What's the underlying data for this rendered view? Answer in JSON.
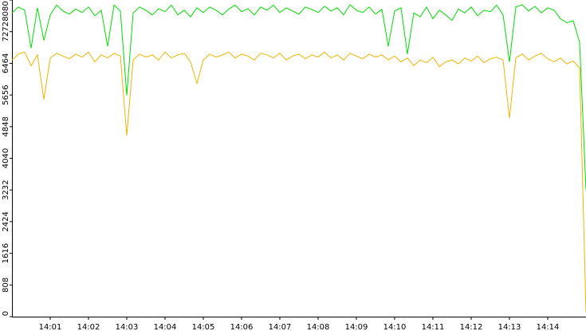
{
  "chart_data": {
    "type": "line",
    "categories": [
      null,
      null,
      null,
      null,
      null,
      null,
      "14:01",
      null,
      null,
      null,
      null,
      null,
      "14:02",
      null,
      null,
      null,
      null,
      null,
      "14:03",
      null,
      null,
      null,
      null,
      null,
      "14:04",
      null,
      null,
      null,
      null,
      null,
      "14:05",
      null,
      null,
      null,
      null,
      null,
      "14:06",
      null,
      null,
      null,
      null,
      null,
      "14:07",
      null,
      null,
      null,
      null,
      null,
      "14:08",
      null,
      null,
      null,
      null,
      null,
      "14:09",
      null,
      null,
      null,
      null,
      null,
      "14:10",
      null,
      null,
      null,
      null,
      null,
      "14:11",
      null,
      null,
      null,
      null,
      null,
      "14:12",
      null,
      null,
      null,
      null,
      null,
      "14:13",
      null,
      null,
      null,
      null,
      null,
      "14:14",
      null,
      null,
      null,
      null,
      null,
      null
    ],
    "series": [
      {
        "color": "#00dd00",
        "values": [
          7750,
          7900,
          7820,
          6850,
          7880,
          7050,
          7700,
          7950,
          7800,
          7720,
          7850,
          7760,
          7900,
          7680,
          7820,
          6900,
          7950,
          7800,
          5650,
          7750,
          7900,
          7820,
          7700,
          7860,
          7780,
          7950,
          7700,
          7820,
          7650,
          7880,
          7760,
          7900,
          7820,
          7700,
          7850,
          7950,
          7780,
          7860,
          7700,
          7900,
          7820,
          7950,
          7760,
          7880,
          7800,
          7720,
          7900,
          7840,
          7760,
          7920,
          7800,
          7880,
          7700,
          7960,
          7820,
          7760,
          7900,
          7720,
          7840,
          6900,
          7800,
          7880,
          6700,
          7750,
          7650,
          7900,
          7600,
          7820,
          7700,
          7560,
          7850,
          7750,
          7900,
          7680,
          7820,
          7780,
          7950,
          7700,
          6500,
          7900,
          7960,
          7800,
          7920,
          7750,
          7880,
          7820,
          7600,
          7500,
          7550,
          7000,
          3230
        ]
      },
      {
        "color": "#f0b400",
        "values": [
          6550,
          6700,
          6750,
          6400,
          6680,
          5540,
          6600,
          6720,
          6650,
          6580,
          6700,
          6620,
          6750,
          6500,
          6680,
          6600,
          6720,
          6650,
          4620,
          6550,
          6700,
          6620,
          6680,
          6550,
          6750,
          6600,
          6680,
          6720,
          6500,
          5950,
          6550,
          6700,
          6620,
          6680,
          6750,
          6600,
          6700,
          6650,
          6550,
          6720,
          6680,
          6600,
          6720,
          6550,
          6650,
          6700,
          6580,
          6680,
          6620,
          6750,
          6600,
          6680,
          6550,
          6720,
          6650,
          6580,
          6700,
          6620,
          6680,
          6550,
          6650,
          6500,
          6600,
          6400,
          6550,
          6480,
          6620,
          6380,
          6500,
          6550,
          6450,
          6600,
          6520,
          6650,
          6480,
          6580,
          6620,
          6550,
          5070,
          6600,
          6700,
          6550,
          6650,
          6720,
          6580,
          6500,
          6600,
          6450,
          6520,
          6350,
          120
        ]
      }
    ],
    "ylim": [
      0,
      8080
    ],
    "yticks": [
      0,
      808,
      1616,
      2424,
      3232,
      4040,
      4848,
      5656,
      6464,
      7272,
      8080
    ]
  }
}
